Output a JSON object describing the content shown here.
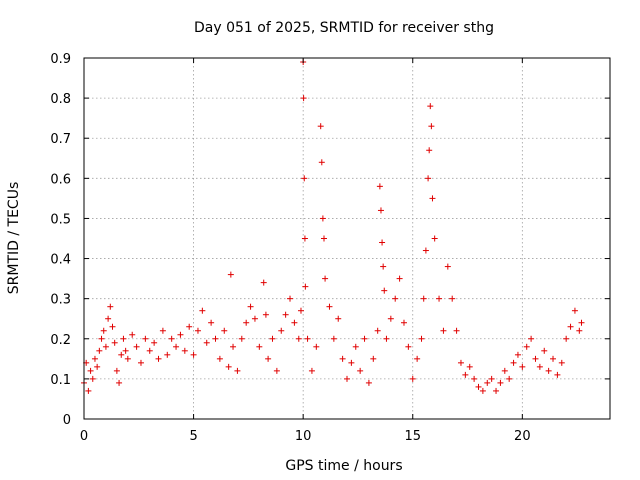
{
  "chart_data": {
    "type": "scatter",
    "title": "Day 051 of 2025, SRMTID for receiver sthg",
    "xlabel": "GPS time / hours",
    "ylabel": "SRMTID / TECUs",
    "xlim": [
      0,
      24
    ],
    "ylim": [
      0,
      0.9
    ],
    "xticks": [
      0,
      5,
      10,
      15,
      20
    ],
    "xtick_labels": [
      "0",
      "5",
      "10",
      "15",
      "20"
    ],
    "yticks": [
      0,
      0.1,
      0.2,
      0.3,
      0.4,
      0.5,
      0.6,
      0.7,
      0.8,
      0.9
    ],
    "ytick_labels": [
      "0",
      "0.1",
      "0.2",
      "0.3",
      "0.4",
      "0.5",
      "0.6",
      "0.7",
      "0.8",
      "0.9"
    ],
    "grid": true,
    "marker": "plus",
    "color": "#e00000",
    "series": [
      {
        "name": "SRMTID",
        "points": [
          [
            0.0,
            0.09
          ],
          [
            0.1,
            0.14
          ],
          [
            0.2,
            0.07
          ],
          [
            0.3,
            0.12
          ],
          [
            0.4,
            0.1
          ],
          [
            0.5,
            0.15
          ],
          [
            0.6,
            0.13
          ],
          [
            0.7,
            0.17
          ],
          [
            0.8,
            0.2
          ],
          [
            0.9,
            0.22
          ],
          [
            1.0,
            0.18
          ],
          [
            1.1,
            0.25
          ],
          [
            1.2,
            0.28
          ],
          [
            1.3,
            0.23
          ],
          [
            1.4,
            0.19
          ],
          [
            1.5,
            0.12
          ],
          [
            1.6,
            0.09
          ],
          [
            1.7,
            0.16
          ],
          [
            1.8,
            0.2
          ],
          [
            1.9,
            0.17
          ],
          [
            2.0,
            0.15
          ],
          [
            2.2,
            0.21
          ],
          [
            2.4,
            0.18
          ],
          [
            2.6,
            0.14
          ],
          [
            2.8,
            0.2
          ],
          [
            3.0,
            0.17
          ],
          [
            3.2,
            0.19
          ],
          [
            3.4,
            0.15
          ],
          [
            3.6,
            0.22
          ],
          [
            3.8,
            0.16
          ],
          [
            4.0,
            0.2
          ],
          [
            4.2,
            0.18
          ],
          [
            4.4,
            0.21
          ],
          [
            4.6,
            0.17
          ],
          [
            4.8,
            0.23
          ],
          [
            5.0,
            0.16
          ],
          [
            5.2,
            0.22
          ],
          [
            5.4,
            0.27
          ],
          [
            5.6,
            0.19
          ],
          [
            5.8,
            0.24
          ],
          [
            6.0,
            0.2
          ],
          [
            6.2,
            0.15
          ],
          [
            6.4,
            0.22
          ],
          [
            6.6,
            0.13
          ],
          [
            6.7,
            0.36
          ],
          [
            6.8,
            0.18
          ],
          [
            7.0,
            0.12
          ],
          [
            7.2,
            0.2
          ],
          [
            7.4,
            0.24
          ],
          [
            7.6,
            0.28
          ],
          [
            7.8,
            0.25
          ],
          [
            8.0,
            0.18
          ],
          [
            8.2,
            0.34
          ],
          [
            8.3,
            0.26
          ],
          [
            8.4,
            0.15
          ],
          [
            8.6,
            0.2
          ],
          [
            8.8,
            0.12
          ],
          [
            9.0,
            0.22
          ],
          [
            9.2,
            0.26
          ],
          [
            9.4,
            0.3
          ],
          [
            9.6,
            0.24
          ],
          [
            9.8,
            0.2
          ],
          [
            9.9,
            0.27
          ],
          [
            10.0,
            0.89
          ],
          [
            10.02,
            0.8
          ],
          [
            10.05,
            0.6
          ],
          [
            10.08,
            0.45
          ],
          [
            10.1,
            0.33
          ],
          [
            10.2,
            0.2
          ],
          [
            10.4,
            0.12
          ],
          [
            10.6,
            0.18
          ],
          [
            10.8,
            0.73
          ],
          [
            10.85,
            0.64
          ],
          [
            10.9,
            0.5
          ],
          [
            10.95,
            0.45
          ],
          [
            11.0,
            0.35
          ],
          [
            11.2,
            0.28
          ],
          [
            11.4,
            0.2
          ],
          [
            11.6,
            0.25
          ],
          [
            11.8,
            0.15
          ],
          [
            12.0,
            0.1
          ],
          [
            12.2,
            0.14
          ],
          [
            12.4,
            0.18
          ],
          [
            12.6,
            0.12
          ],
          [
            12.8,
            0.2
          ],
          [
            13.0,
            0.09
          ],
          [
            13.2,
            0.15
          ],
          [
            13.4,
            0.22
          ],
          [
            13.5,
            0.58
          ],
          [
            13.55,
            0.52
          ],
          [
            13.6,
            0.44
          ],
          [
            13.65,
            0.38
          ],
          [
            13.7,
            0.32
          ],
          [
            13.8,
            0.2
          ],
          [
            14.0,
            0.25
          ],
          [
            14.2,
            0.3
          ],
          [
            14.4,
            0.35
          ],
          [
            14.6,
            0.24
          ],
          [
            14.8,
            0.18
          ],
          [
            15.0,
            0.1
          ],
          [
            15.2,
            0.15
          ],
          [
            15.4,
            0.2
          ],
          [
            15.5,
            0.3
          ],
          [
            15.6,
            0.42
          ],
          [
            15.7,
            0.6
          ],
          [
            15.75,
            0.67
          ],
          [
            15.8,
            0.78
          ],
          [
            15.85,
            0.73
          ],
          [
            15.9,
            0.55
          ],
          [
            16.0,
            0.45
          ],
          [
            16.2,
            0.3
          ],
          [
            16.4,
            0.22
          ],
          [
            16.6,
            0.38
          ],
          [
            16.8,
            0.3
          ],
          [
            17.0,
            0.22
          ],
          [
            17.2,
            0.14
          ],
          [
            17.4,
            0.11
          ],
          [
            17.6,
            0.13
          ],
          [
            17.8,
            0.1
          ],
          [
            18.0,
            0.08
          ],
          [
            18.2,
            0.07
          ],
          [
            18.4,
            0.09
          ],
          [
            18.6,
            0.1
          ],
          [
            18.8,
            0.07
          ],
          [
            19.0,
            0.09
          ],
          [
            19.2,
            0.12
          ],
          [
            19.4,
            0.1
          ],
          [
            19.6,
            0.14
          ],
          [
            19.8,
            0.16
          ],
          [
            20.0,
            0.13
          ],
          [
            20.2,
            0.18
          ],
          [
            20.4,
            0.2
          ],
          [
            20.6,
            0.15
          ],
          [
            20.8,
            0.13
          ],
          [
            21.0,
            0.17
          ],
          [
            21.2,
            0.12
          ],
          [
            21.4,
            0.15
          ],
          [
            21.6,
            0.11
          ],
          [
            21.8,
            0.14
          ],
          [
            22.0,
            0.2
          ],
          [
            22.2,
            0.23
          ],
          [
            22.4,
            0.27
          ],
          [
            22.6,
            0.22
          ],
          [
            22.7,
            0.24
          ]
        ]
      }
    ]
  }
}
